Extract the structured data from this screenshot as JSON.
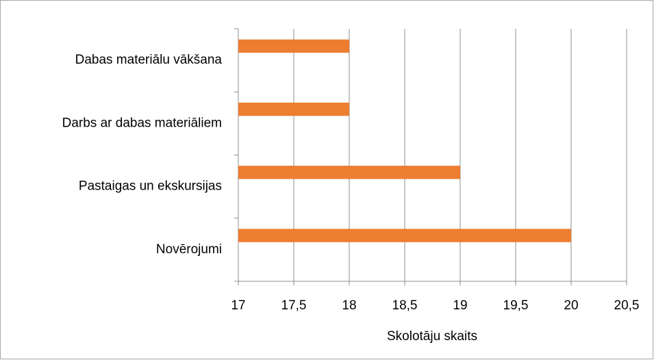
{
  "chart_data": {
    "type": "bar",
    "orientation": "horizontal",
    "categories": [
      "Dabas materiālu vākšana",
      "Darbs ar dabas materiāliem",
      "Pastaigas un ekskursijas",
      "Novērojumi"
    ],
    "values": [
      18,
      18,
      19,
      20
    ],
    "color": "#ed7d31",
    "x_label": "Skolotāju skaits",
    "xlim": [
      17,
      20.5
    ],
    "xticks": [
      17,
      {
        "value": 17.5,
        "label": "17,5"
      },
      18,
      {
        "value": 18.5,
        "label": "18,5"
      },
      19,
      {
        "value": 19.5,
        "label": "19,5"
      },
      20,
      {
        "value": 20.5,
        "label": "20,5"
      }
    ],
    "grid": true
  }
}
